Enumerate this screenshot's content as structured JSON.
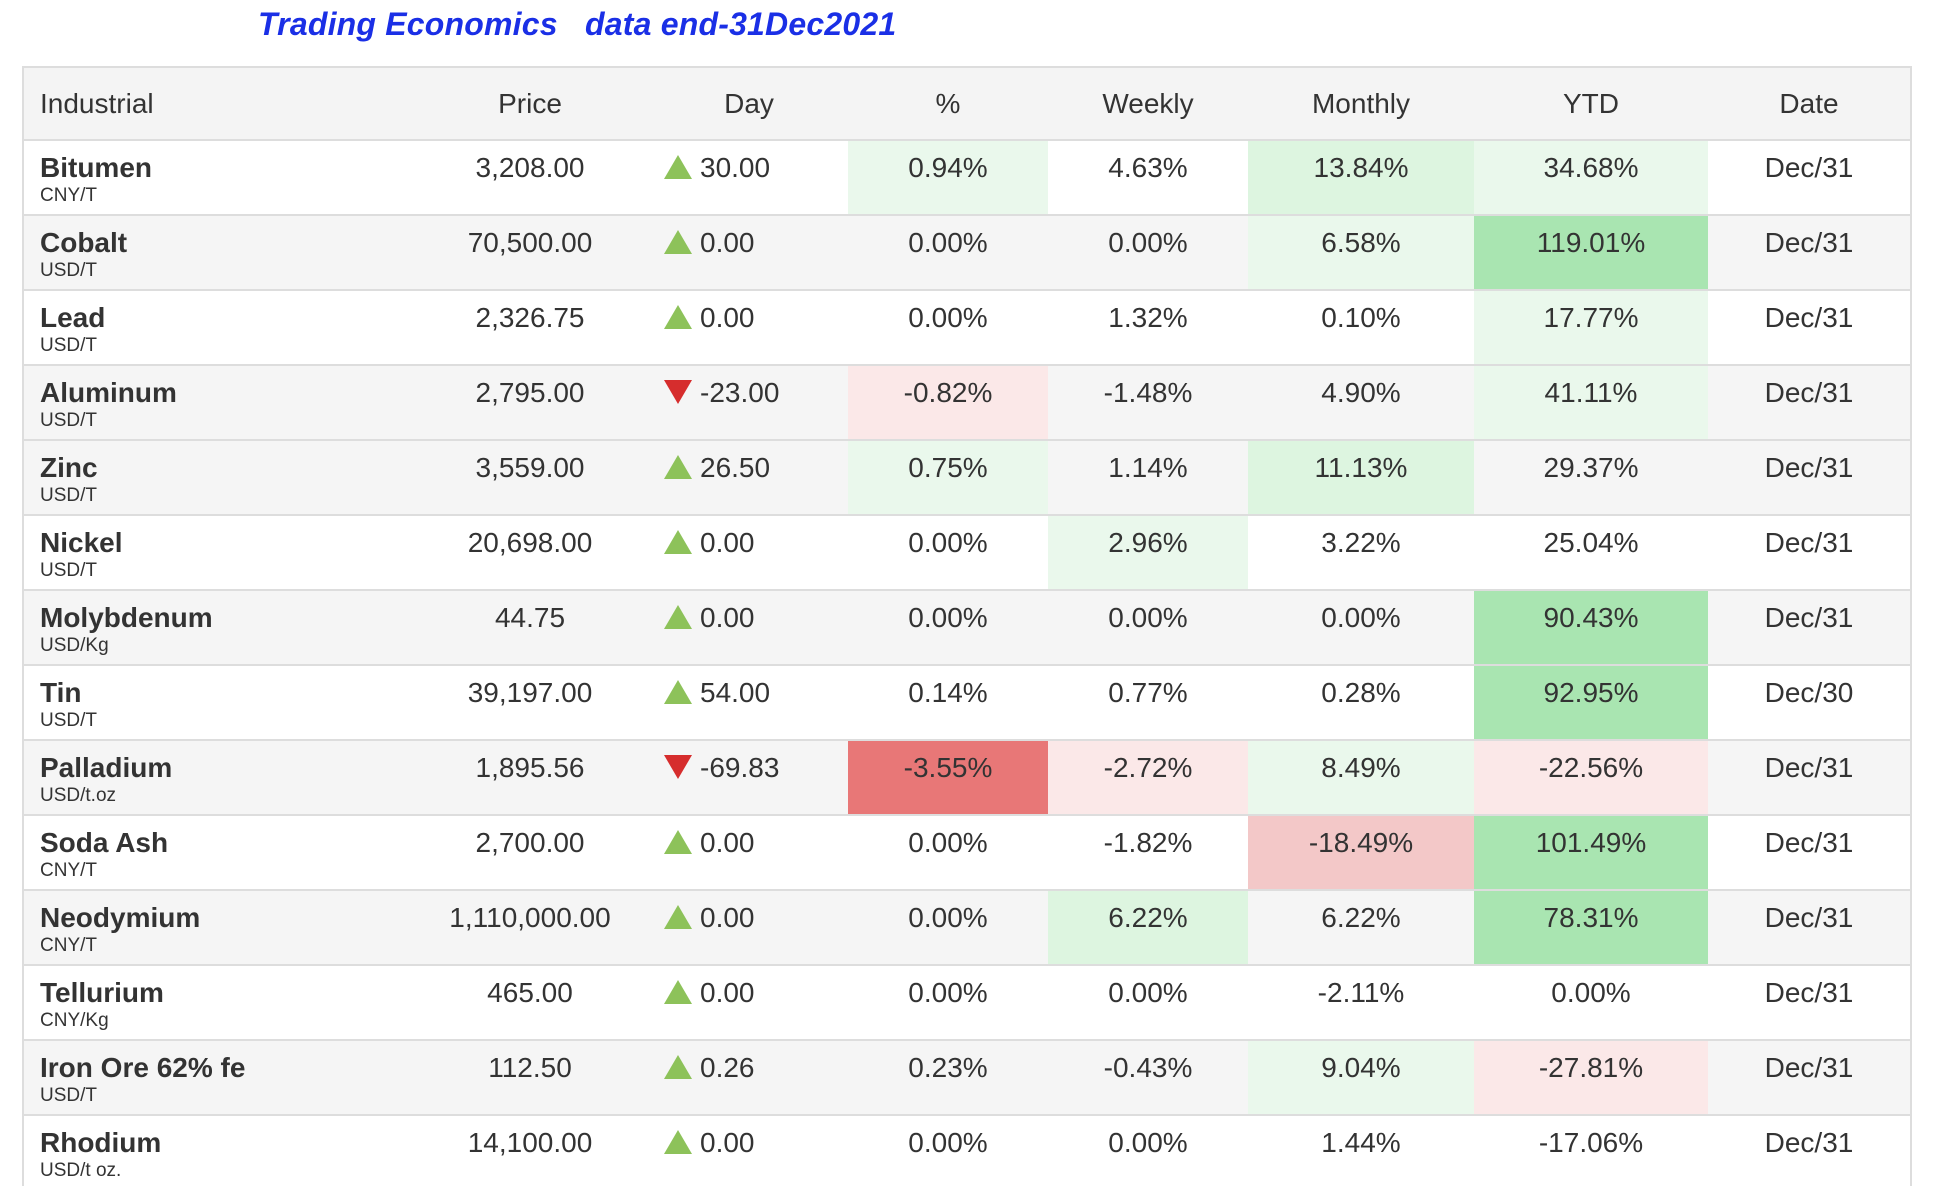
{
  "title": "Trading Economics   data end-31Dec2021",
  "table": {
    "headers": [
      "Industrial",
      "Price",
      "Day",
      "%",
      "Weekly",
      "Monthly",
      "YTD",
      "Date"
    ],
    "rows": [
      {
        "name": "Bitumen",
        "unit": "CNY/T",
        "price": "3,208.00",
        "day_dir": "up",
        "day": "30.00",
        "pct": "0.94%",
        "weekly": "4.63%",
        "monthly": "13.84%",
        "ytd": "34.68%",
        "date": "Dec/31"
      },
      {
        "name": "Cobalt",
        "unit": "USD/T",
        "price": "70,500.00",
        "day_dir": "up",
        "day": "0.00",
        "pct": "0.00%",
        "weekly": "0.00%",
        "monthly": "6.58%",
        "ytd": "119.01%",
        "date": "Dec/31"
      },
      {
        "name": "Lead",
        "unit": "USD/T",
        "price": "2,326.75",
        "day_dir": "up",
        "day": "0.00",
        "pct": "0.00%",
        "weekly": "1.32%",
        "monthly": "0.10%",
        "ytd": "17.77%",
        "date": "Dec/31"
      },
      {
        "name": "Aluminum",
        "unit": "USD/T",
        "price": "2,795.00",
        "day_dir": "down",
        "day": "-23.00",
        "pct": "-0.82%",
        "weekly": "-1.48%",
        "monthly": "4.90%",
        "ytd": "41.11%",
        "date": "Dec/31"
      },
      {
        "name": "Zinc",
        "unit": "USD/T",
        "price": "3,559.00",
        "day_dir": "up",
        "day": "26.50",
        "pct": "0.75%",
        "weekly": "1.14%",
        "monthly": "11.13%",
        "ytd": "29.37%",
        "date": "Dec/31"
      },
      {
        "name": "Nickel",
        "unit": "USD/T",
        "price": "20,698.00",
        "day_dir": "up",
        "day": "0.00",
        "pct": "0.00%",
        "weekly": "2.96%",
        "monthly": "3.22%",
        "ytd": "25.04%",
        "date": "Dec/31"
      },
      {
        "name": "Molybdenum",
        "unit": "USD/Kg",
        "price": "44.75",
        "day_dir": "up",
        "day": "0.00",
        "pct": "0.00%",
        "weekly": "0.00%",
        "monthly": "0.00%",
        "ytd": "90.43%",
        "date": "Dec/31"
      },
      {
        "name": "Tin",
        "unit": "USD/T",
        "price": "39,197.00",
        "day_dir": "up",
        "day": "54.00",
        "pct": "0.14%",
        "weekly": "0.77%",
        "monthly": "0.28%",
        "ytd": "92.95%",
        "date": "Dec/30"
      },
      {
        "name": "Palladium",
        "unit": "USD/t.oz",
        "price": "1,895.56",
        "day_dir": "down",
        "day": "-69.83",
        "pct": "-3.55%",
        "weekly": "-2.72%",
        "monthly": "8.49%",
        "ytd": "-22.56%",
        "date": "Dec/31"
      },
      {
        "name": "Soda Ash",
        "unit": "CNY/T",
        "price": "2,700.00",
        "day_dir": "up",
        "day": "0.00",
        "pct": "0.00%",
        "weekly": "-1.82%",
        "monthly": "-18.49%",
        "ytd": "101.49%",
        "date": "Dec/31"
      },
      {
        "name": "Neodymium",
        "unit": "CNY/T",
        "price": "1,110,000.00",
        "day_dir": "up",
        "day": "0.00",
        "pct": "0.00%",
        "weekly": "6.22%",
        "monthly": "6.22%",
        "ytd": "78.31%",
        "date": "Dec/31"
      },
      {
        "name": "Tellurium",
        "unit": "CNY/Kg",
        "price": "465.00",
        "day_dir": "up",
        "day": "0.00",
        "pct": "0.00%",
        "weekly": "0.00%",
        "monthly": "-2.11%",
        "ytd": "0.00%",
        "date": "Dec/31"
      },
      {
        "name": "Iron Ore 62% fe",
        "unit": "USD/T",
        "price": "112.50",
        "day_dir": "up",
        "day": "0.26",
        "pct": "0.23%",
        "weekly": "-0.43%",
        "monthly": "9.04%",
        "ytd": "-27.81%",
        "date": "Dec/31"
      },
      {
        "name": "Rhodium",
        "unit": "USD/t oz.",
        "price": "14,100.00",
        "day_dir": "up",
        "day": "0.00",
        "pct": "0.00%",
        "weekly": "0.00%",
        "monthly": "1.44%",
        "ytd": "-17.06%",
        "date": "Dec/31"
      }
    ]
  },
  "colors": {
    "title": "#1a2fe6",
    "arrow_up": "#8dc25a",
    "arrow_down": "#d62d2d",
    "green_light": "#eaf8ec",
    "green_mid": "#ddf5e0",
    "green_strong": "#a9e5b1",
    "red_light": "#fbe8e8",
    "red_mid": "#f3c8c8",
    "red_strong": "#e87777"
  },
  "icons": {
    "up": "triangle-up-icon",
    "down": "triangle-down-icon"
  }
}
